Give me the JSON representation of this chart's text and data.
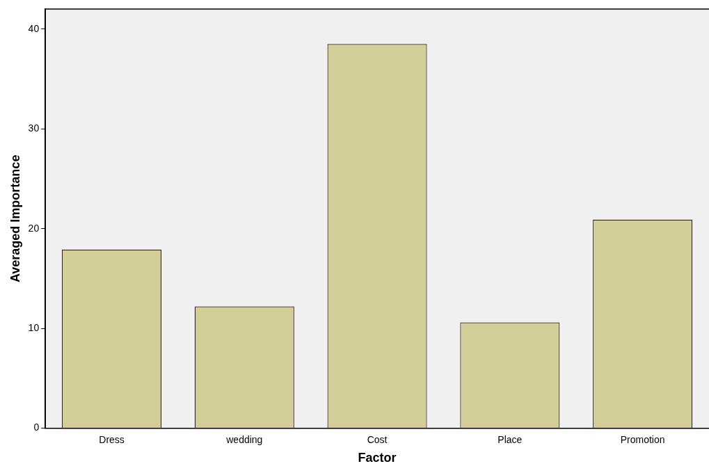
{
  "chart_data": {
    "type": "bar",
    "xlabel": "Factor",
    "ylabel": "Averaged Importance",
    "categories": [
      "Dress",
      "wedding",
      "Cost",
      "Place",
      "Promotion"
    ],
    "values": [
      17.9,
      12.2,
      38.5,
      10.6,
      20.9
    ],
    "color": "#d3ce97",
    "ylim": [
      0,
      42
    ],
    "yticks": [
      0,
      10,
      20,
      30,
      40
    ],
    "grid": false,
    "legend": false
  }
}
